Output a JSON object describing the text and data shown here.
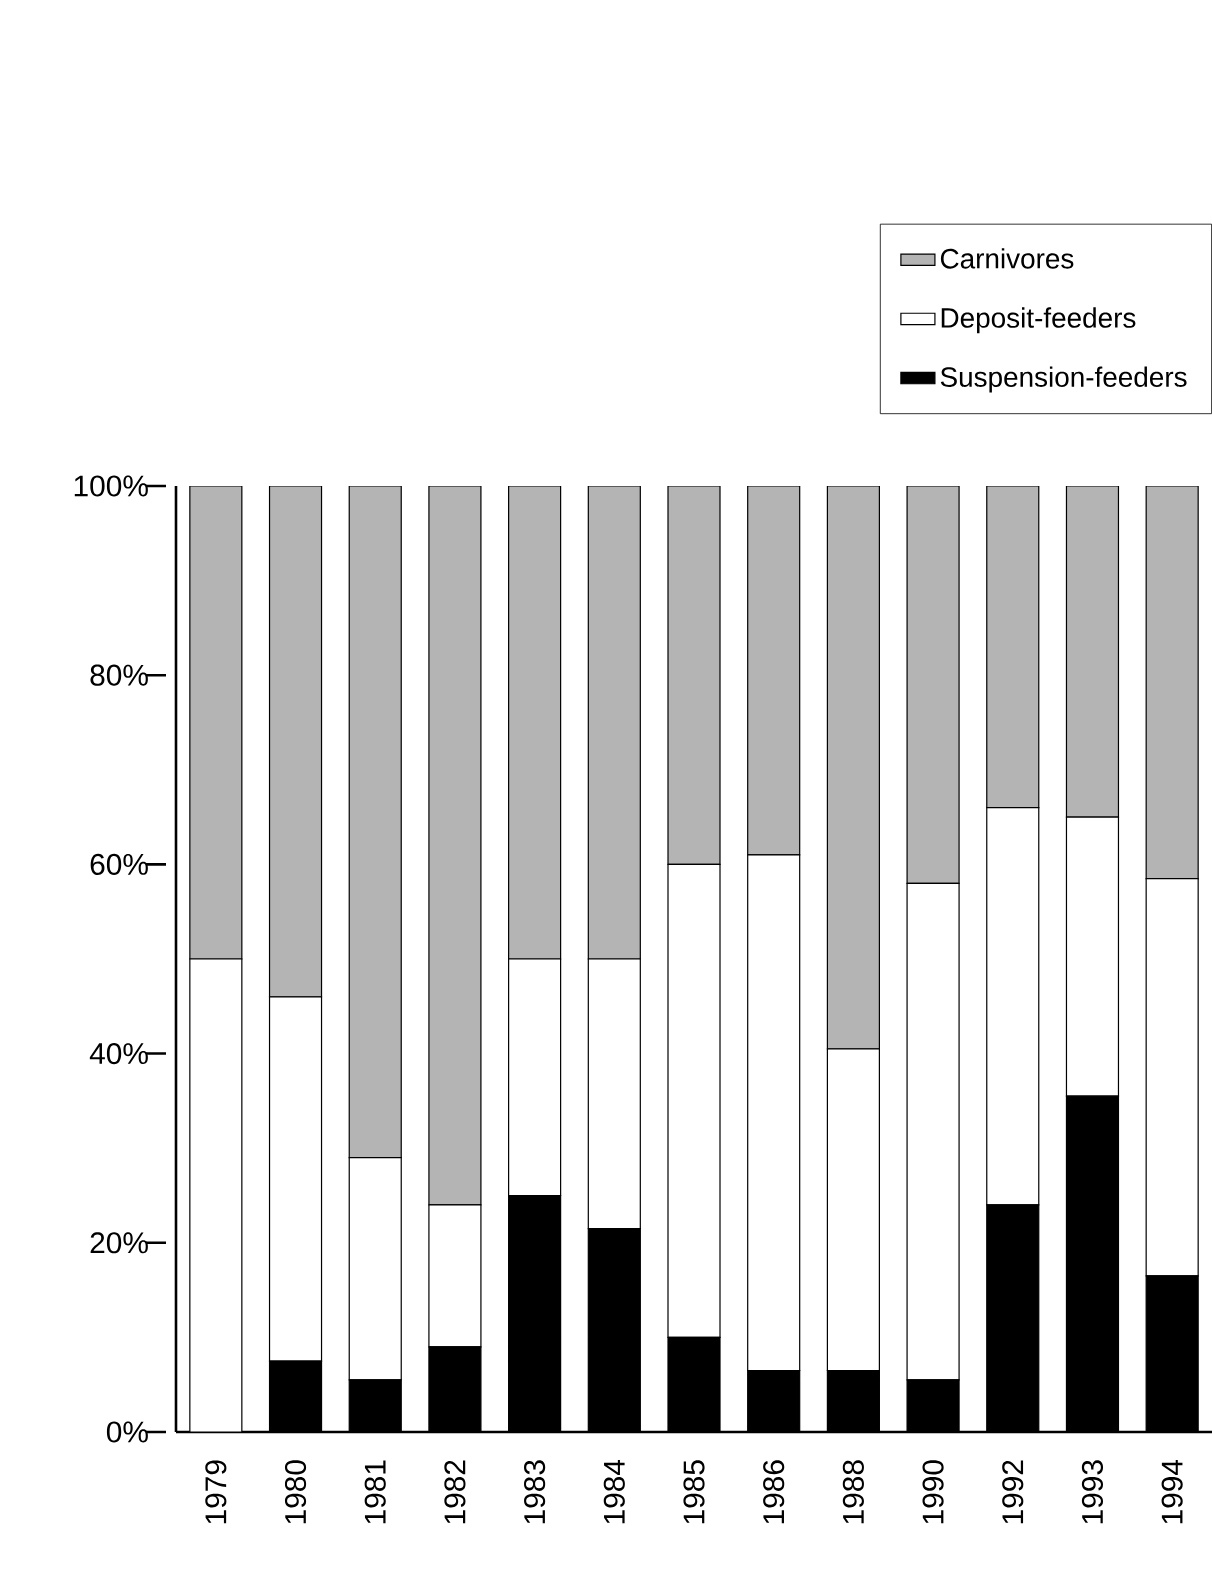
{
  "chart_data": {
    "type": "bar",
    "stacked": true,
    "categories": [
      "1979",
      "1980",
      "1981",
      "1982",
      "1983",
      "1984",
      "1985",
      "1986",
      "1988",
      "1990",
      "1992",
      "1993",
      "1994"
    ],
    "series": [
      {
        "name": "Suspension-feeders",
        "color": "#000000",
        "values": [
          0,
          7.5,
          5.5,
          9,
          25,
          21.5,
          10,
          6.5,
          6.5,
          5.5,
          24,
          35.5,
          16.5
        ]
      },
      {
        "name": "Deposit-feeders",
        "color": "#ffffff",
        "values": [
          50,
          38.5,
          23.5,
          15,
          25,
          28.5,
          50,
          54.5,
          34,
          52.5,
          42,
          29.5,
          42
        ]
      },
      {
        "name": "Carnivores",
        "color": "#b4b4b4",
        "values": [
          50,
          54,
          71,
          76,
          50,
          50,
          40,
          39,
          59.5,
          42,
          34,
          35,
          41.5
        ]
      }
    ],
    "ylim": [
      0,
      100
    ],
    "yticks": [
      {
        "value": 0,
        "label": "0%"
      },
      {
        "value": 20,
        "label": "20%"
      },
      {
        "value": 40,
        "label": "40%"
      },
      {
        "value": 60,
        "label": "60%"
      },
      {
        "value": 80,
        "label": "80%"
      },
      {
        "value": 100,
        "label": "100%"
      }
    ],
    "legend": "top right",
    "grid": false
  }
}
